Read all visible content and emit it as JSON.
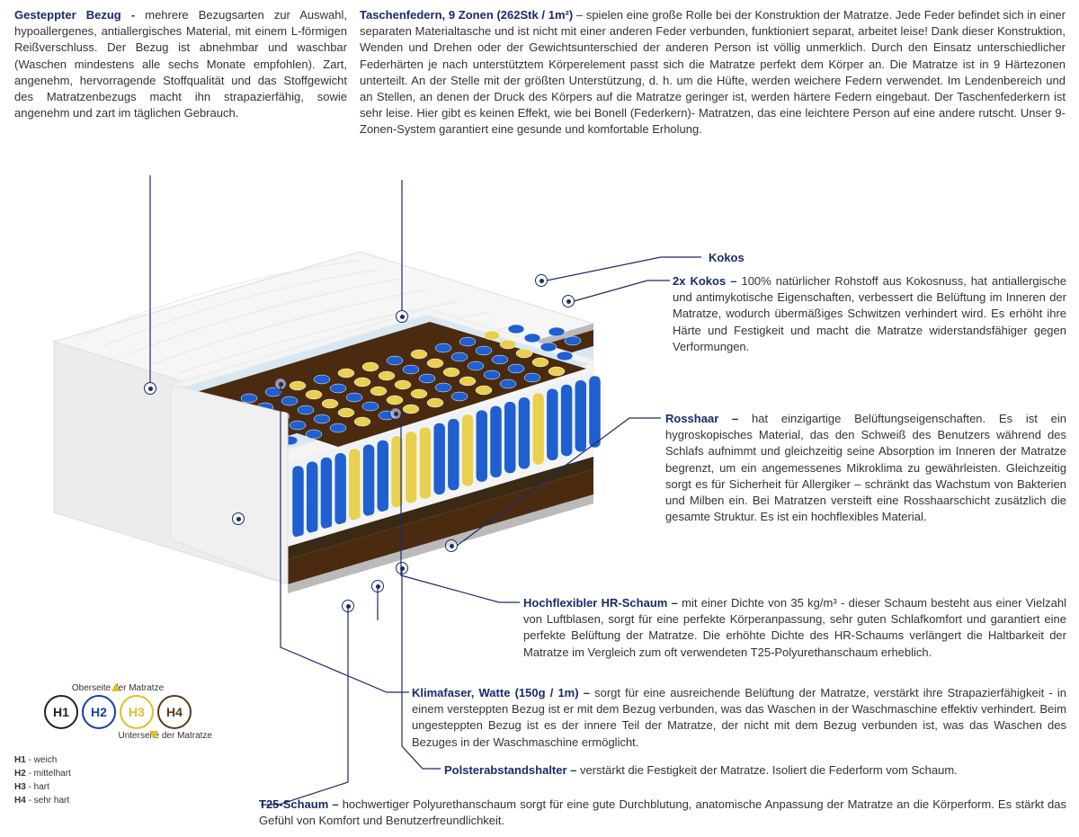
{
  "colors": {
    "heading": "#1a2a6c",
    "text": "#333333",
    "leader": "#1a2a6c",
    "h1": "#222222",
    "h2": "#1a3db0",
    "h3": "#e0c020",
    "h4": "#5a3a1a",
    "coco": "#4a2b10",
    "spring_blue": "#1f5fd0",
    "spring_yellow": "#e8d050",
    "foam_light": "#d8e8f2",
    "foam_white": "#f4f4f4",
    "felt": "#bababa"
  },
  "top_left": {
    "title": "Gesteppter Bezug - ",
    "body": "mehrere Bezugsarten zur Auswahl, hypoallergenes, antiallergisches Material, mit einem L-förmigen Reißverschluss. Der Bezug ist abnehmbar und waschbar (Waschen mindestens alle sechs Monate empfohlen). Zart, angenehm, hervorragende Stoffqualität und das Stoffgewicht des Matratzenbezugs macht ihn strapazierfähig, sowie angenehm und zart im täglichen Gebrauch."
  },
  "top_right": {
    "title": "Taschenfedern, 9 Zonen (262Stk / 1m²) ",
    "body": " – spielen eine große Rolle bei der Konstruktion der Matratze. Jede Feder befindet sich in einer separaten Materialtasche und ist nicht mit einer anderen Feder verbunden, funktioniert separat, arbeitet leise! Dank dieser Konstruktion, Wenden und Drehen oder der Gewichtsunterschied der anderen Person ist völlig unmerklich. Durch den Einsatz unterschiedlicher Federhärten je nach unterstütztem Körperelement passt sich die Matratze perfekt dem Körper an. Die Matratze ist in 9 Härtezonen unterteilt. An der Stelle mit der größten Unterstützung, d. h. um die Hüfte, werden weichere Federn verwendet. Im Lendenbereich und an Stellen, an denen der Druck des Körpers auf die Matratze geringer ist, werden härtere Federn eingebaut. Der Taschenfederkern ist sehr leise. Hier gibt es keinen Effekt, wie bei Bonell (Federkern)- Matratzen, das eine leichtere Person auf eine andere rutscht. Unser 9-Zonen-System garantiert eine gesunde und komfortable Erholung."
  },
  "kokos_label": "Kokos",
  "kokos2": {
    "title": "2x Kokos – ",
    "body": " 100% natürlicher Rohstoff aus Kokosnuss, hat antiallergische und antimykotische Eigenschaften, verbessert die Belüftung im Inneren der Matratze, wodurch übermäßiges Schwitzen verhindert wird. Es erhöht ihre Härte und Festigkeit und macht die Matratze widerstandsfähiger gegen Verformungen."
  },
  "rosshaar": {
    "title": "Rosshaar – ",
    "body": " hat einzigartige Belüftungseigenschaften. Es ist ein hygroskopisches Material, das den Schweiß des Benutzers während des Schlafs aufnimmt und gleichzeitig seine Absorption im Inneren der Matratze begrenzt, um ein angemessenes Mikroklima zu gewährleisten. Gleichzeitig sorgt es für Sicherheit für Allergiker – schränkt das Wachstum von Bakterien und Milben ein. Bei Matratzen versteift eine Rosshaarschicht zusätzlich die gesamte Struktur. Es ist ein hochflexibles Material."
  },
  "hr": {
    "title": "Hochflexibler HR-Schaum – ",
    "body": " mit einer Dichte von 35 kg/m³ - dieser Schaum besteht aus einer Vielzahl von Luftblasen, sorgt für eine perfekte Körperanpassung, sehr guten Schlafkomfort und garantiert eine perfekte Belüftung der Matratze. Die erhöhte Dichte des HR-Schaums verlängert die Haltbarkeit der Matratze im Vergleich zum oft verwendeten T25-Polyurethanschaum erheblich."
  },
  "klima": {
    "title": "Klimafaser, Watte (150g / 1m) – ",
    "body": " sorgt für eine ausreichende Belüftung der Matratze, verstärkt ihre Strapazierfähigkeit - in einem versteppten Bezug ist er mit dem Bezug verbunden, was das Waschen in der Waschmaschine effektiv verhindert. Beim ungesteppten Bezug ist es der innere Teil der Matratze, der nicht mit dem Bezug verbunden ist, was das Waschen des Bezuges in der Waschmaschine ermöglicht."
  },
  "polster": {
    "title": "Polsterabstandshalter – ",
    "body": " verstärkt die Festigkeit der Matratze. Isoliert die Federform vom Schaum."
  },
  "t25": {
    "title": "T25-Schaum – ",
    "body": "hochwertiger Polyurethanschaum sorgt für eine gute Durchblutung, anatomische Anpassung der Matratze an die Körperform. Es stärkt das Gefühl von Komfort und Benutzerfreundlichkeit."
  },
  "legend": {
    "top": "Oberseite der Matratze",
    "bottom": "Unterseite der Matratze",
    "circles": [
      {
        "label": "H1",
        "color": "#222222"
      },
      {
        "label": "H2",
        "color": "#1a3db0"
      },
      {
        "label": "H3",
        "color": "#e0c020"
      },
      {
        "label": "H4",
        "color": "#5a3a1a"
      }
    ],
    "defs": [
      {
        "k": "H1",
        "v": " - weich"
      },
      {
        "k": "H2",
        "v": " - mittelhart"
      },
      {
        "k": "H3",
        "v": " - hart"
      },
      {
        "k": "H4",
        "v": " - sehr hart"
      }
    ]
  }
}
